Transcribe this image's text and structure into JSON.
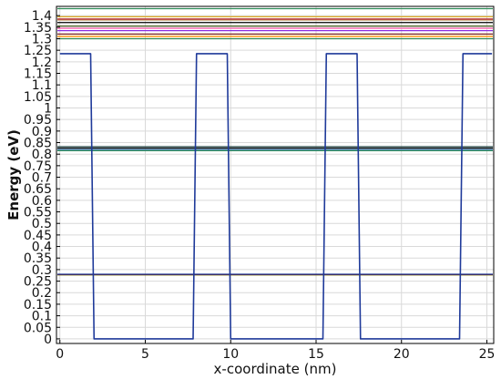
{
  "chart_data": {
    "type": "line",
    "title": "",
    "xlabel": "x-coordinate (nm)",
    "ylabel": "Energy (eV)",
    "xlim": [
      -0.2,
      25.4
    ],
    "ylim": [
      -0.02,
      1.44
    ],
    "x_ticks": [
      0,
      5,
      10,
      15,
      20,
      25
    ],
    "y_ticks": [
      0,
      0.05,
      0.1,
      0.15,
      0.2,
      0.25,
      0.3,
      0.35,
      0.4,
      0.45,
      0.5,
      0.55,
      0.6,
      0.65,
      0.7,
      0.75,
      0.8,
      0.85,
      0.9,
      0.95,
      1,
      1.05,
      1.1,
      1.15,
      1.2,
      1.25,
      1.3,
      1.35,
      1.4
    ],
    "x_tick_labels": [
      "0",
      "5",
      "10",
      "15",
      "20",
      "25"
    ],
    "y_tick_labels": [
      "0",
      "0.05",
      "0.1",
      "0.15",
      "0.2",
      "0.25",
      "0.3",
      "0.35",
      "0.4",
      "0.45",
      "0.5",
      "0.55",
      "0.6",
      "0.65",
      "0.7",
      "0.75",
      "0.8",
      "0.85",
      "0.9",
      "0.95",
      "1",
      "1.05",
      "1.1",
      "1.15",
      "1.2",
      "1.25",
      "1.3",
      "1.35",
      "1.4"
    ],
    "grid": true,
    "potential": {
      "color": "#1f3a9a",
      "x": [
        0,
        1.8,
        2.0,
        7.8,
        8.0,
        9.8,
        10.0,
        15.4,
        15.6,
        17.4,
        17.6,
        23.4,
        23.6,
        25.3
      ],
      "y": [
        1.235,
        1.235,
        0,
        0,
        1.235,
        1.235,
        0,
        0,
        1.235,
        1.235,
        0,
        0,
        1.235,
        1.235
      ]
    },
    "energy_levels": [
      {
        "energy": 0.277,
        "color": "#b8860b"
      },
      {
        "energy": 0.278,
        "color": "#2e7d32"
      },
      {
        "energy": 0.279,
        "color": "#8b0000"
      },
      {
        "energy": 0.28,
        "color": "#1f3a9a"
      },
      {
        "energy": 0.815,
        "color": "#2e8b57"
      },
      {
        "energy": 0.82,
        "color": "#4682b4"
      },
      {
        "energy": 0.826,
        "color": "#1a1a1a"
      },
      {
        "energy": 0.832,
        "color": "#2f4f4f"
      },
      {
        "energy": 1.3,
        "color": "#2e8b57"
      },
      {
        "energy": 1.31,
        "color": "#ff8c00"
      },
      {
        "energy": 1.32,
        "color": "#7a1f1f"
      },
      {
        "energy": 1.335,
        "color": "#8a2be2"
      },
      {
        "energy": 1.345,
        "color": "#ff69b4"
      },
      {
        "energy": 1.355,
        "color": "#556b2f"
      },
      {
        "energy": 1.37,
        "color": "#000000"
      },
      {
        "energy": 1.38,
        "color": "#d2b48c"
      },
      {
        "energy": 1.385,
        "color": "#b22222"
      },
      {
        "energy": 1.395,
        "color": "#daa520"
      },
      {
        "energy": 1.43,
        "color": "#2e8b57"
      }
    ]
  }
}
